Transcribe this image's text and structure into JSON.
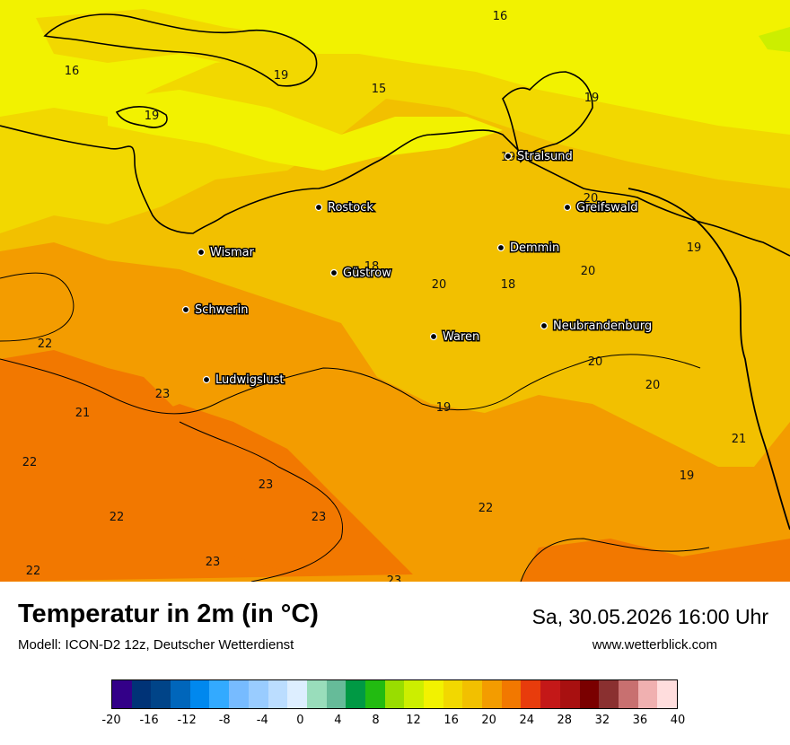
{
  "map": {
    "cities": [
      {
        "name": "Stralsund"
      },
      {
        "name": "Rostock"
      },
      {
        "name": "Greifswald"
      },
      {
        "name": "Wismar"
      },
      {
        "name": "Demmin"
      },
      {
        "name": "Güstrow"
      },
      {
        "name": "Schwerin"
      },
      {
        "name": "Neubrandenburg"
      },
      {
        "name": "Waren"
      },
      {
        "name": "Ludwigslust"
      }
    ],
    "isolines": [
      {
        "value": "16"
      },
      {
        "value": "16"
      },
      {
        "value": "19"
      },
      {
        "value": "15"
      },
      {
        "value": "19"
      },
      {
        "value": "19"
      },
      {
        "value": "19"
      },
      {
        "value": "20"
      },
      {
        "value": "19"
      },
      {
        "value": "18"
      },
      {
        "value": "20"
      },
      {
        "value": "20"
      },
      {
        "value": "18"
      },
      {
        "value": "22"
      },
      {
        "value": "20"
      },
      {
        "value": "20"
      },
      {
        "value": "23"
      },
      {
        "value": "21"
      },
      {
        "value": "19"
      },
      {
        "value": "21"
      },
      {
        "value": "22"
      },
      {
        "value": "19"
      },
      {
        "value": "23"
      },
      {
        "value": "22"
      },
      {
        "value": "23"
      },
      {
        "value": "22"
      },
      {
        "value": "23"
      },
      {
        "value": "22"
      },
      {
        "value": "23"
      }
    ]
  },
  "title": "Temperatur in 2m (in °C)",
  "model": "Modell: ICON-D2 12z, Deutscher Wetterdienst",
  "datetime": "Sa, 30.05.2026 16:00 Uhr",
  "website": "www.wetterblick.com",
  "legend": {
    "colors": [
      "#330088",
      "#003377",
      "#004488",
      "#0066bb",
      "#0088ee",
      "#33aaff",
      "#77bbff",
      "#99ccff",
      "#bbddff",
      "#ddeeff",
      "#99ddbb",
      "#66bb99",
      "#009944",
      "#22bb11",
      "#99dd00",
      "#ccee00",
      "#f2f200",
      "#f2d800",
      "#f2c000",
      "#f39c00",
      "#f27800",
      "#e83c0c",
      "#c41818",
      "#a81010",
      "#7a0000",
      "#8a3030",
      "#c87070",
      "#f0b0b0",
      "#ffdddd"
    ],
    "ticks": [
      "-20",
      "-16",
      "-12",
      "-8",
      "-4",
      "0",
      "4",
      "8",
      "12",
      "16",
      "20",
      "24",
      "28",
      "32",
      "36",
      "40"
    ]
  },
  "colors": {
    "yellow": "#f2f200",
    "lightgreen": "#ccee00",
    "gold": "#f2c000",
    "goldlight": "#f2d800",
    "orange": "#f39c00",
    "darkorange": "#f27800"
  }
}
